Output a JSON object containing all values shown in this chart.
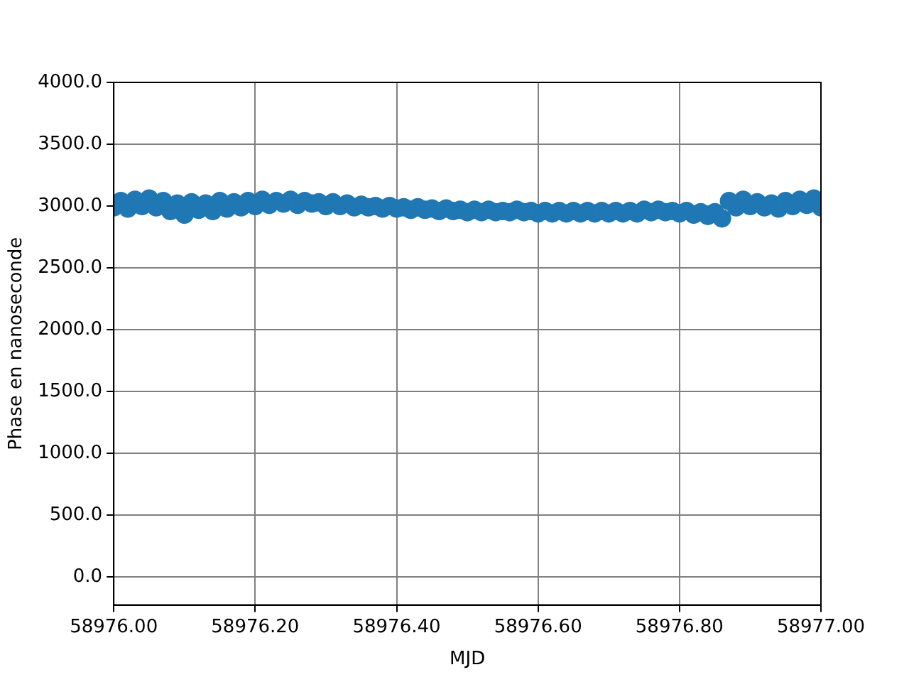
{
  "chart_data": {
    "type": "scatter",
    "xlabel": "MJD",
    "ylabel": "Phase en nanoseconde",
    "x": [
      58976.0,
      58976.01,
      58976.02,
      58976.03,
      58976.04,
      58976.05,
      58976.06,
      58976.07,
      58976.08,
      58976.09,
      58976.1,
      58976.11,
      58976.12,
      58976.13,
      58976.14,
      58976.15,
      58976.16,
      58976.17,
      58976.18,
      58976.19,
      58976.2,
      58976.21,
      58976.22,
      58976.23,
      58976.24,
      58976.25,
      58976.26,
      58976.27,
      58976.28,
      58976.29,
      58976.3,
      58976.31,
      58976.32,
      58976.33,
      58976.34,
      58976.35,
      58976.36,
      58976.37,
      58976.38,
      58976.39,
      58976.4,
      58976.41,
      58976.42,
      58976.43,
      58976.44,
      58976.45,
      58976.46,
      58976.47,
      58976.48,
      58976.49,
      58976.5,
      58976.51,
      58976.52,
      58976.53,
      58976.54,
      58976.55,
      58976.56,
      58976.57,
      58976.58,
      58976.59,
      58976.6,
      58976.61,
      58976.62,
      58976.63,
      58976.64,
      58976.65,
      58976.66,
      58976.67,
      58976.68,
      58976.69,
      58976.7,
      58976.71,
      58976.72,
      58976.73,
      58976.74,
      58976.75,
      58976.76,
      58976.77,
      58976.78,
      58976.79,
      58976.8,
      58976.81,
      58976.82,
      58976.83,
      58976.84,
      58976.85,
      58976.86,
      58976.87,
      58976.88,
      58976.89,
      58976.9,
      58976.91,
      58976.92,
      58976.93,
      58976.94,
      58976.95,
      58976.96,
      58976.97,
      58976.98,
      58976.99,
      58977.0
    ],
    "series": [
      {
        "color": "#1f77b4",
        "values": [
          2990,
          3040,
          2980,
          3050,
          3000,
          3060,
          2990,
          3040,
          2960,
          3020,
          2930,
          3030,
          2970,
          3020,
          2960,
          3040,
          2980,
          3030,
          2990,
          3040,
          3000,
          3050,
          3010,
          3040,
          3020,
          3050,
          3010,
          3040,
          3020,
          3030,
          3000,
          3030,
          3000,
          3020,
          2990,
          3010,
          2990,
          3000,
          2980,
          3000,
          2980,
          2990,
          2970,
          2990,
          2970,
          2980,
          2960,
          2980,
          2960,
          2970,
          2950,
          2970,
          2950,
          2970,
          2950,
          2960,
          2950,
          2970,
          2950,
          2960,
          2940,
          2960,
          2940,
          2960,
          2940,
          2960,
          2940,
          2960,
          2940,
          2960,
          2940,
          2960,
          2940,
          2960,
          2940,
          2970,
          2950,
          2970,
          2950,
          2960,
          2940,
          2960,
          2930,
          2950,
          2920,
          2950,
          2900,
          3040,
          2990,
          3050,
          3000,
          3030,
          2990,
          3020,
          2980,
          3040,
          3000,
          3050,
          3010,
          3060,
          2990
        ]
      }
    ],
    "marker": "circle",
    "grid": true,
    "xlim": [
      58976.0,
      58977.0
    ],
    "xticks": [
      {
        "value": 58976.0,
        "label": "58976.00"
      },
      {
        "value": 58976.2,
        "label": "58976.20"
      },
      {
        "value": 58976.4,
        "label": "58976.40"
      },
      {
        "value": 58976.6,
        "label": "58976.60"
      },
      {
        "value": 58976.8,
        "label": "58976.80"
      },
      {
        "value": 58977.0,
        "label": "58977.00"
      }
    ],
    "ylim": [
      -228,
      4000
    ],
    "yticks": [
      {
        "value": 0,
        "label": "0.0"
      },
      {
        "value": 500,
        "label": "500.0"
      },
      {
        "value": 1000,
        "label": "1000.0"
      },
      {
        "value": 1500,
        "label": "1500.0"
      },
      {
        "value": 2000,
        "label": "2000.0"
      },
      {
        "value": 2500,
        "label": "2500.0"
      },
      {
        "value": 3000,
        "label": "3000.0"
      },
      {
        "value": 3500,
        "label": "3500.0"
      },
      {
        "value": 4000,
        "label": "4000.0"
      }
    ]
  }
}
